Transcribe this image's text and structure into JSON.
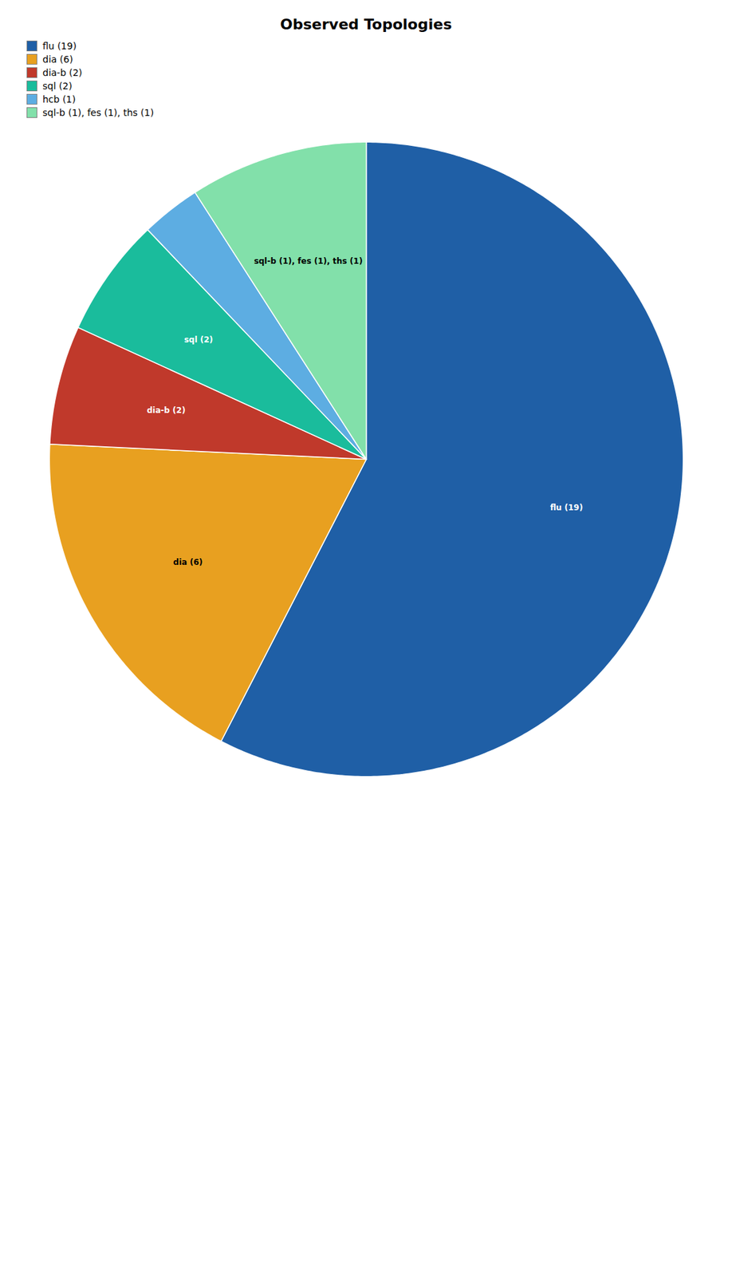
{
  "chart_data": {
    "type": "pie",
    "title": "Observed Topologies",
    "categories": [
      "flu (19)",
      "dia (6)",
      "dia-b (2)",
      "sql (2)",
      "hcb (1)",
      "sql-b (1), fes (1), ths (1)"
    ],
    "values": [
      19,
      6,
      2,
      2,
      1,
      3
    ],
    "colors": [
      "#1f5fa6",
      "#e8a020",
      "#c0392b",
      "#1abc9c",
      "#5dade2",
      "#82e0aa"
    ],
    "labels": [
      "flu (19)",
      "dia (6)",
      "dia-b (2)",
      "sql (2)",
      null,
      "sql-b (1), fes (1), ths (1)"
    ],
    "legend": "upper left"
  }
}
